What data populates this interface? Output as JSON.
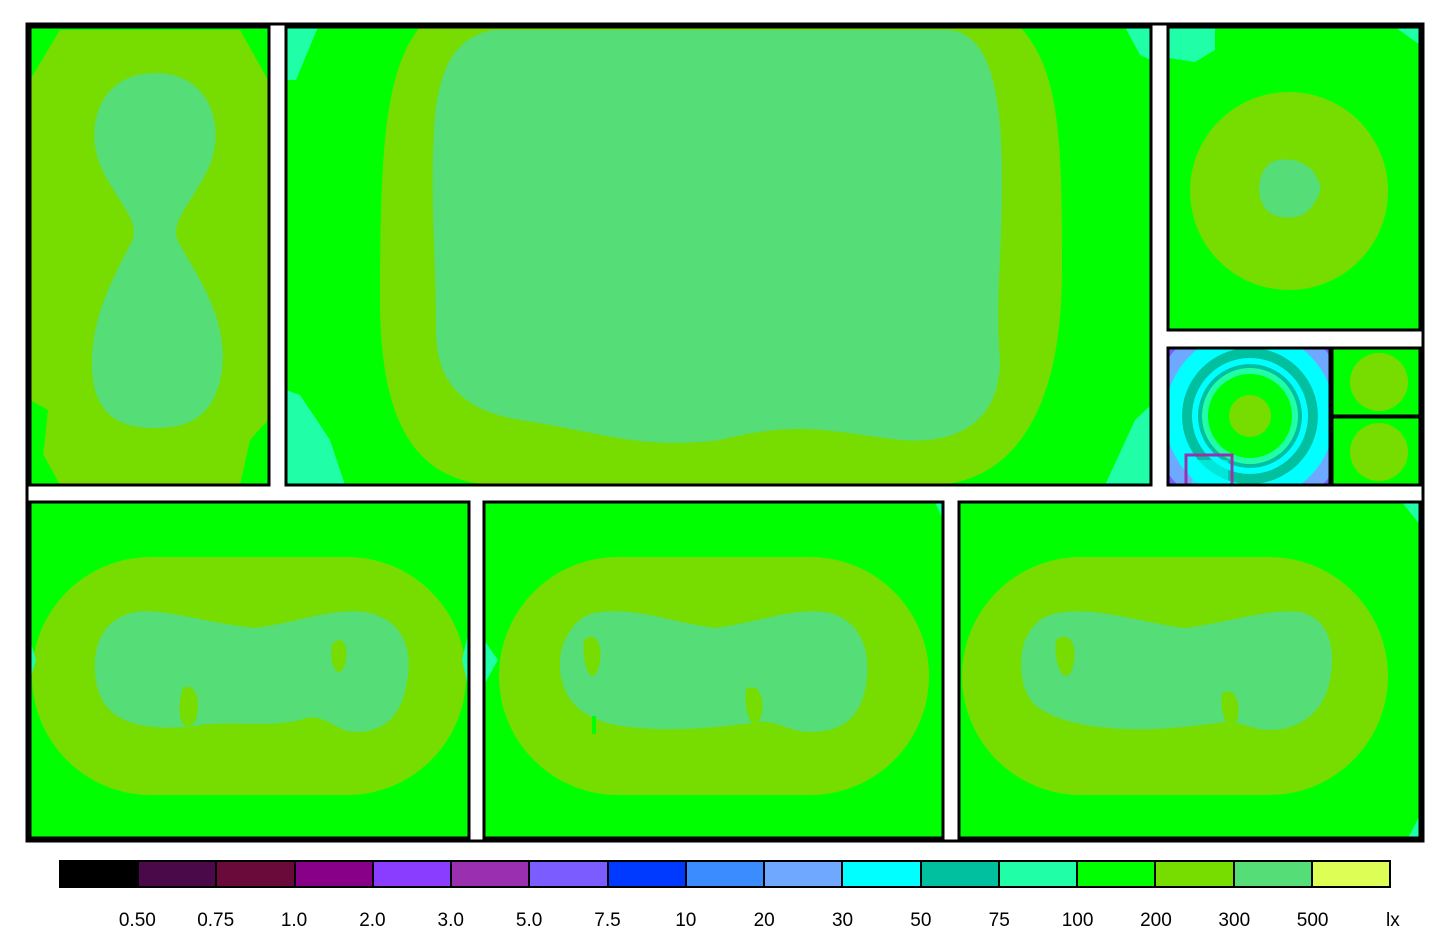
{
  "legend": {
    "colors": [
      "#000000",
      "#4a0a4a",
      "#6a0a3a",
      "#880088",
      "#8b3dff",
      "#9a30b0",
      "#7a5cff",
      "#0039ff",
      "#3a8cff",
      "#6fa8ff",
      "#00ffff",
      "#00c0a0",
      "#20ffa8",
      "#00ff00",
      "#77dd00",
      "#55dd77",
      "#ddff55"
    ],
    "ticks": [
      "0.50",
      "0.75",
      "1.0",
      "2.0",
      "3.0",
      "5.0",
      "7.5",
      "10",
      "20",
      "30",
      "50",
      "75",
      "100",
      "200",
      "300",
      "500"
    ],
    "unit": "lx"
  },
  "zone_colors": {
    "c100_200": "#00ff00",
    "c200_300": "#77dd00",
    "c300_500": "#55dd77",
    "c75_100": "#20ffa8",
    "c50_75": "#00c0a0",
    "c30_50": "#00ffff",
    "c20_30": "#6fa8ff",
    "c7_10": "#7a5cff",
    "c3_5": "#9a30b0"
  }
}
